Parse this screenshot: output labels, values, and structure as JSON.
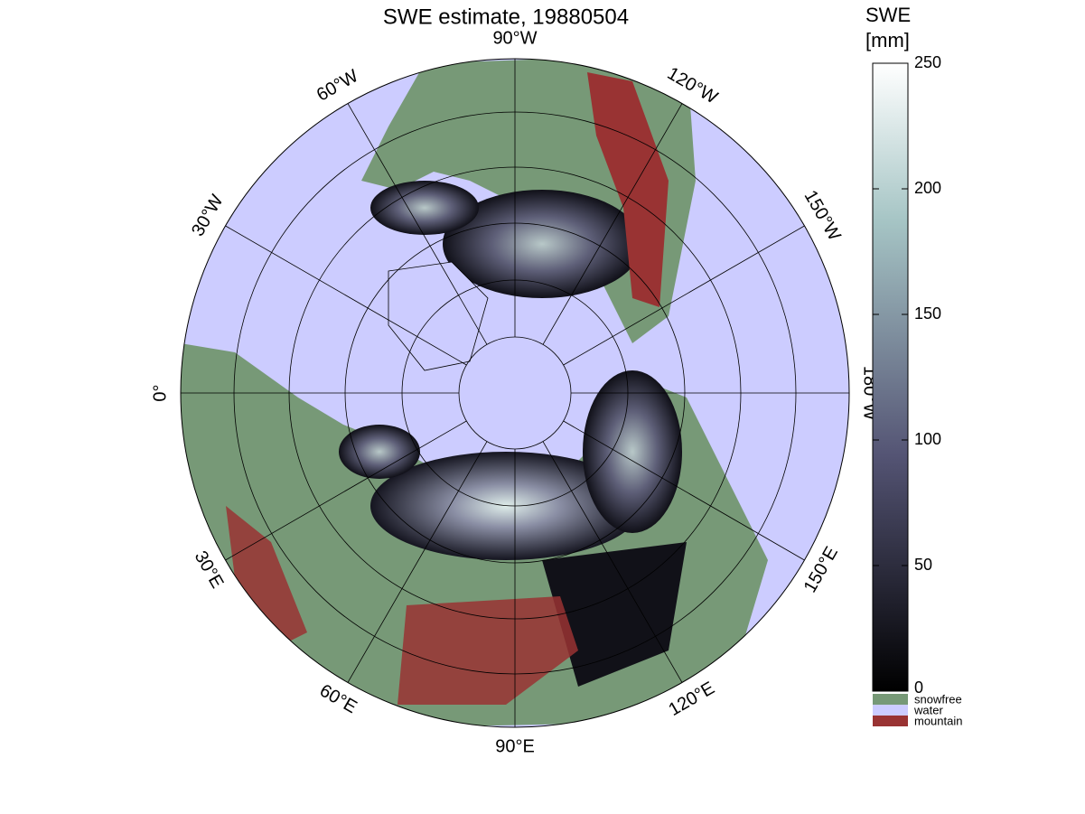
{
  "title": "SWE estimate, 19880504",
  "map": {
    "meridian_labels": [
      "90°W",
      "120°W",
      "150°W",
      "180°W",
      "150°E",
      "120°E",
      "90°E",
      "60°E",
      "30°E",
      "0°",
      "30°W",
      "60°W"
    ]
  },
  "colorbar": {
    "label": [
      "SWE",
      "[mm]"
    ],
    "range": [
      0,
      250
    ],
    "ticks": [
      0,
      50,
      100,
      150,
      200,
      250
    ]
  },
  "legend": [
    {
      "name": "snowfree",
      "color": "#779977"
    },
    {
      "name": "water",
      "color": "#ccccff"
    },
    {
      "name": "mountain",
      "color": "#993333"
    }
  ]
}
